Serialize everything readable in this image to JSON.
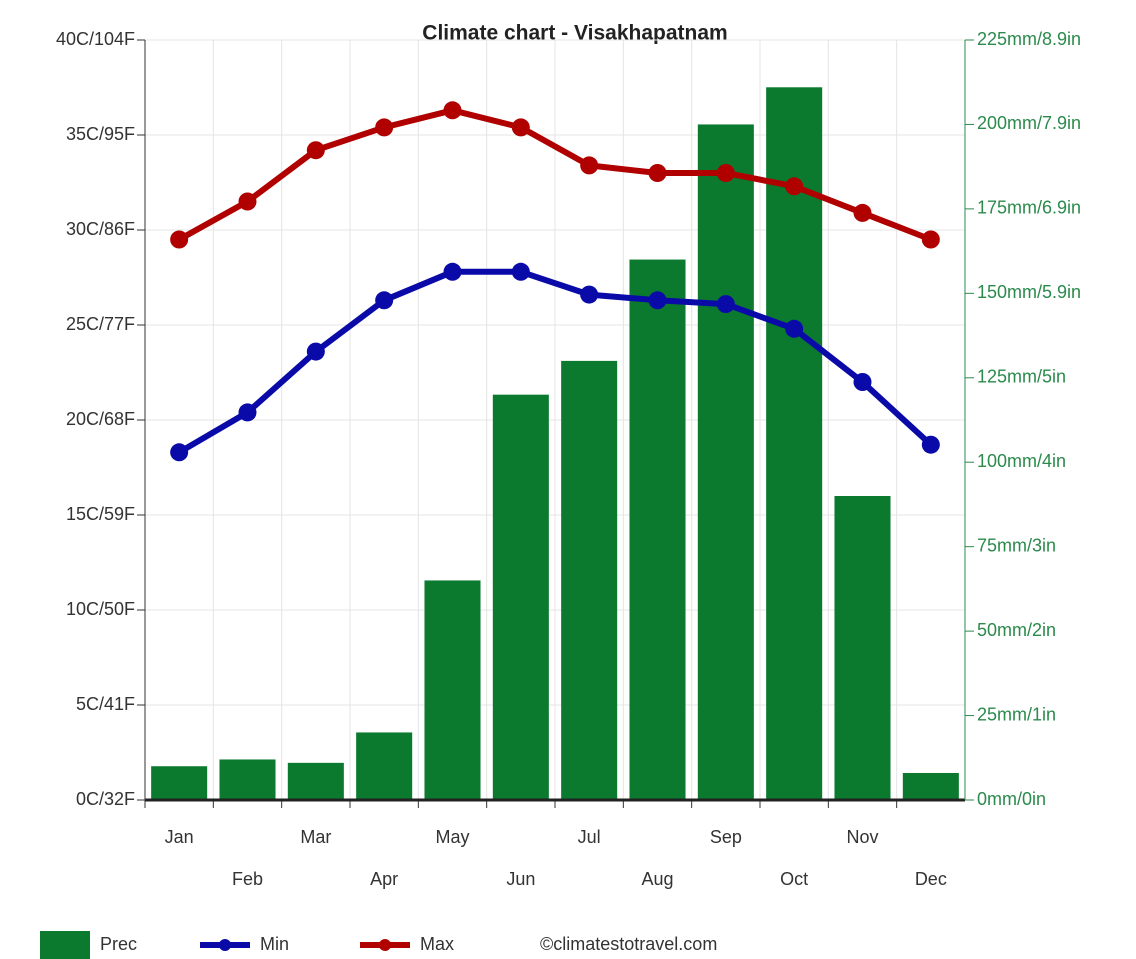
{
  "chart_data": {
    "type": "bar",
    "title": "Climate chart - Visakhapatnam",
    "categories": [
      "Jan",
      "Feb",
      "Mar",
      "Apr",
      "May",
      "Jun",
      "Jul",
      "Aug",
      "Sep",
      "Oct",
      "Nov",
      "Dec"
    ],
    "series": [
      {
        "name": "Prec",
        "type": "bar",
        "axis": "y2",
        "color": "#0b7a2f",
        "values": [
          10,
          12,
          11,
          20,
          65,
          120,
          130,
          160,
          200,
          211,
          90,
          8
        ]
      },
      {
        "name": "Min",
        "type": "line",
        "color": "#0a0aa8",
        "values": [
          18.3,
          20.4,
          23.6,
          26.3,
          27.8,
          27.8,
          26.6,
          26.3,
          26.1,
          24.8,
          22,
          18.7
        ]
      },
      {
        "name": "Max",
        "type": "line",
        "color": "#b00000",
        "values": [
          29.5,
          31.5,
          34.2,
          35.4,
          36.3,
          35.4,
          33.4,
          33,
          33,
          32.3,
          30.9,
          29.5
        ]
      }
    ],
    "ylim": [
      0,
      40
    ],
    "yticks": [
      {
        "value": 0,
        "label": "0C/32F"
      },
      {
        "value": 5,
        "label": "5C/41F"
      },
      {
        "value": 10,
        "label": "10C/50F"
      },
      {
        "value": 15,
        "label": "15C/59F"
      },
      {
        "value": 20,
        "label": "20C/68F"
      },
      {
        "value": 25,
        "label": "25C/77F"
      },
      {
        "value": 30,
        "label": "30C/86F"
      },
      {
        "value": 35,
        "label": "35C/95F"
      },
      {
        "value": 40,
        "label": "40C/104F"
      }
    ],
    "y2lim": [
      0,
      225
    ],
    "y2ticks": [
      {
        "value": 0,
        "label": "0mm/0in"
      },
      {
        "value": 25,
        "label": "25mm/1in"
      },
      {
        "value": 50,
        "label": "50mm/2in"
      },
      {
        "value": 75,
        "label": "75mm/3in"
      },
      {
        "value": 100,
        "label": "100mm/4in"
      },
      {
        "value": 125,
        "label": "125mm/5in"
      },
      {
        "value": 150,
        "label": "150mm/5.9in"
      },
      {
        "value": 175,
        "label": "175mm/6.9in"
      },
      {
        "value": 200,
        "label": "200mm/7.9in"
      },
      {
        "value": 225,
        "label": "225mm/8.9in"
      }
    ],
    "grid": true,
    "source": "©climatestotravel.com"
  }
}
